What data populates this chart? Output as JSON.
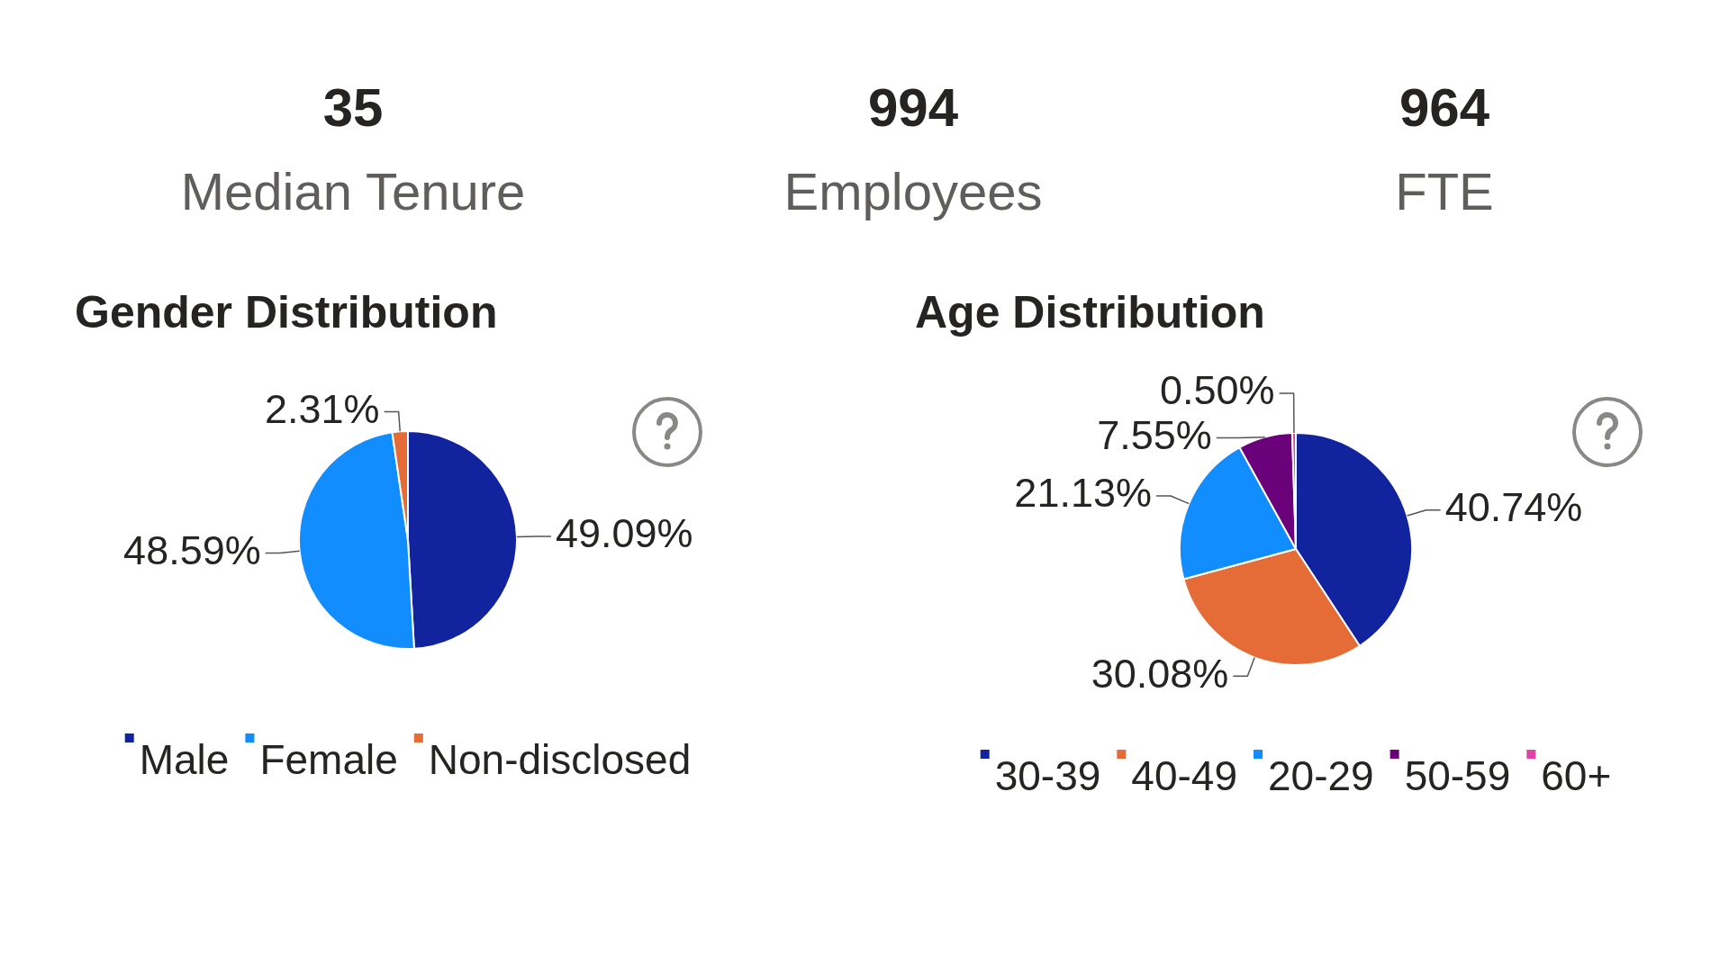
{
  "chart_data": [
    {
      "type": "other",
      "categories": [
        "Median Tenure",
        "Employees",
        "FTE"
      ],
      "values": [
        35,
        994,
        964
      ],
      "data_labels": true
    },
    {
      "type": "pie",
      "title": "Gender Distribution",
      "categories": [
        "Male",
        "Female",
        "Non-disclosed"
      ],
      "values": [
        49.09,
        48.59,
        2.31
      ],
      "colors": [
        "#12239e",
        "#118dff",
        "#e66c37"
      ],
      "value_labels": [
        "49.09%",
        "48.59%",
        "2.31%"
      ],
      "legend": "bottom"
    },
    {
      "type": "pie",
      "title": "Age Distribution",
      "categories": [
        "30-39",
        "40-49",
        "20-29",
        "50-59",
        "60+"
      ],
      "values": [
        40.74,
        30.08,
        21.13,
        7.55,
        0.5
      ],
      "colors": [
        "#12239e",
        "#e66c37",
        "#118dff",
        "#6b007b",
        "#e044a7"
      ],
      "value_labels": [
        "40.74%",
        "30.08%",
        "21.13%",
        "7.55%",
        "0.50%"
      ],
      "legend": "bottom"
    }
  ]
}
